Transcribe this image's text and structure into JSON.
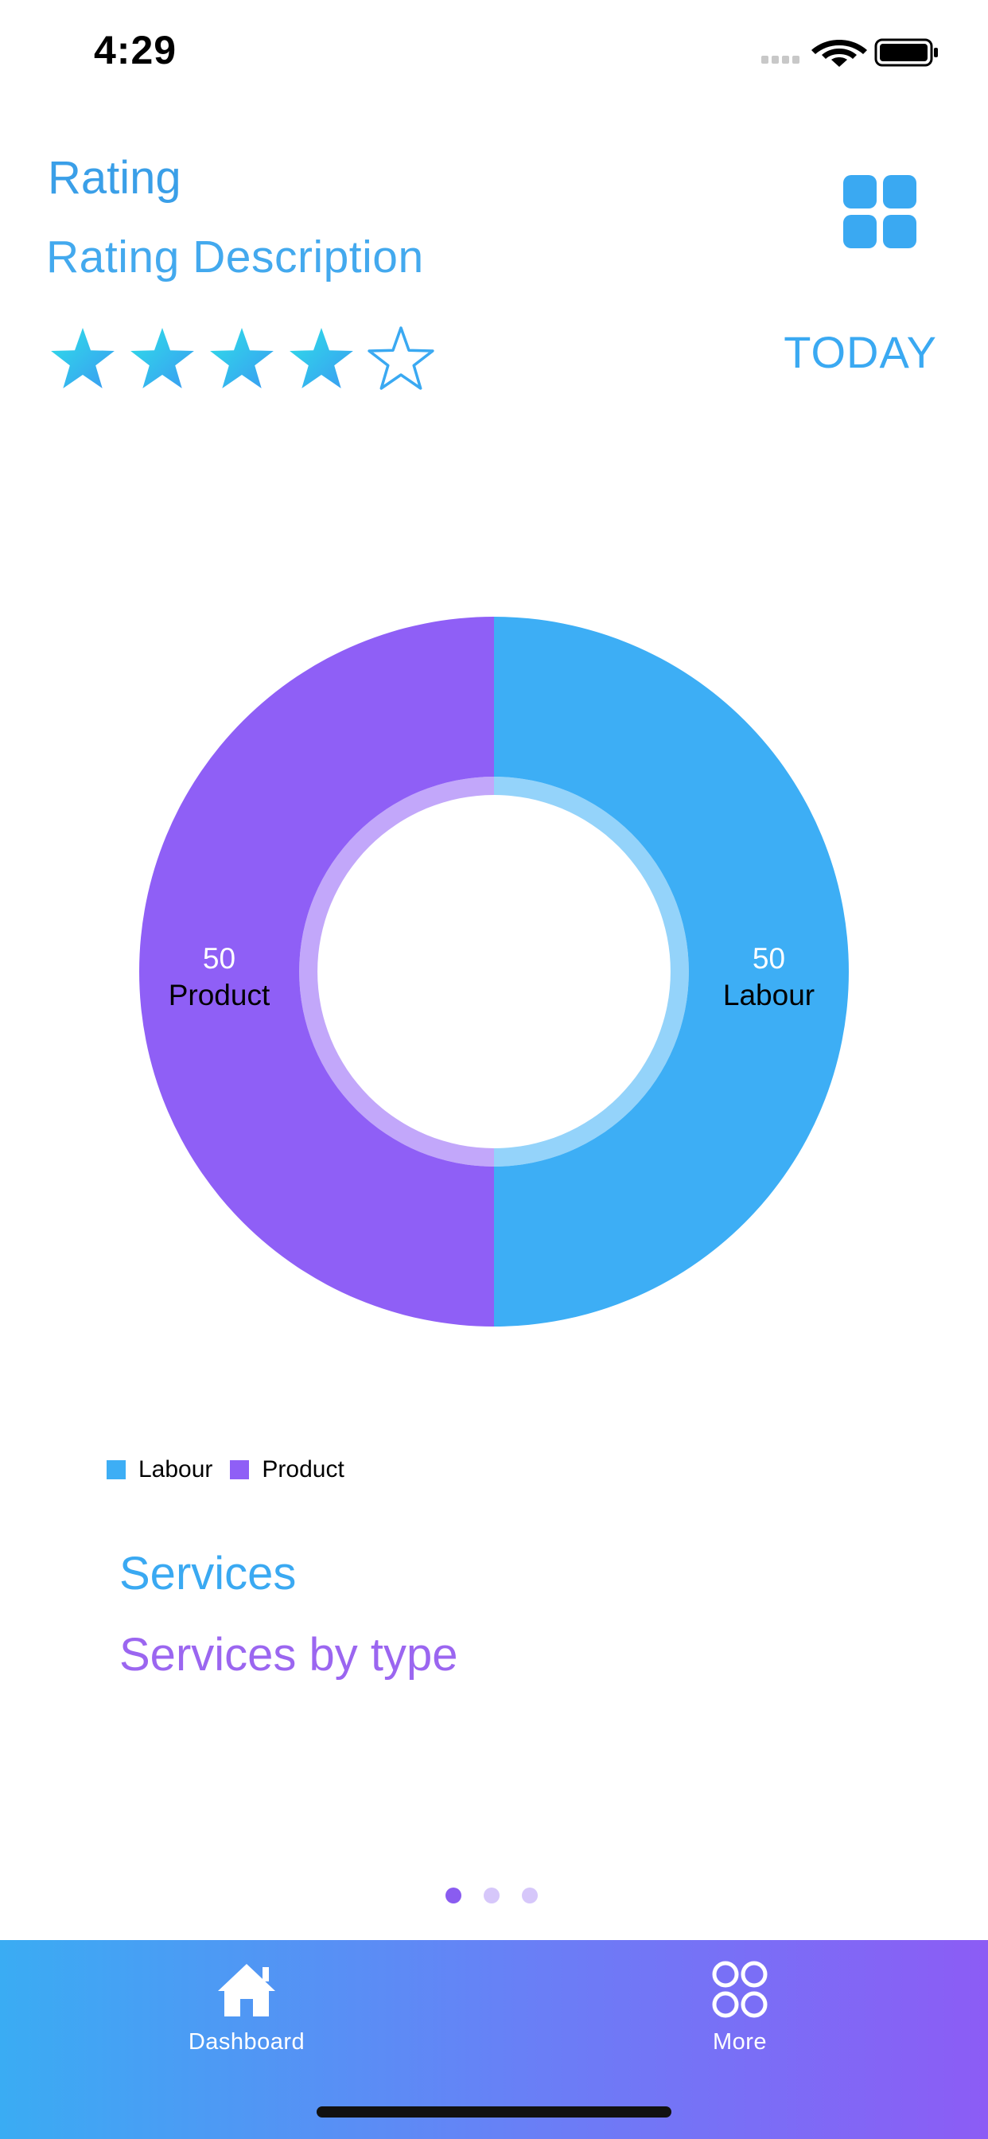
{
  "status_bar": {
    "time": "4:29"
  },
  "header": {
    "title": "Rating",
    "description": "Rating Description",
    "rating": {
      "value": 4,
      "max": 5
    },
    "period_button": "TODAY"
  },
  "chart_data": {
    "type": "pie",
    "variant": "donut",
    "slices": [
      {
        "label": "Labour",
        "value": 50,
        "color": "#3daef5"
      },
      {
        "label": "Product",
        "value": 50,
        "color": "#8f5ff6"
      }
    ],
    "legend": [
      "Labour",
      "Product"
    ],
    "legend_position": "bottom-left"
  },
  "section": {
    "title": "Services",
    "subtitle": "Services by type"
  },
  "pager": {
    "pages": 3,
    "active_index": 0
  },
  "tabbar": {
    "items": [
      {
        "label": "Dashboard",
        "icon": "home-icon"
      },
      {
        "label": "More",
        "icon": "four-circles-icon"
      }
    ]
  },
  "colors": {
    "accent_blue": "#3aa9f2",
    "accent_purple": "#8f5ff6"
  }
}
